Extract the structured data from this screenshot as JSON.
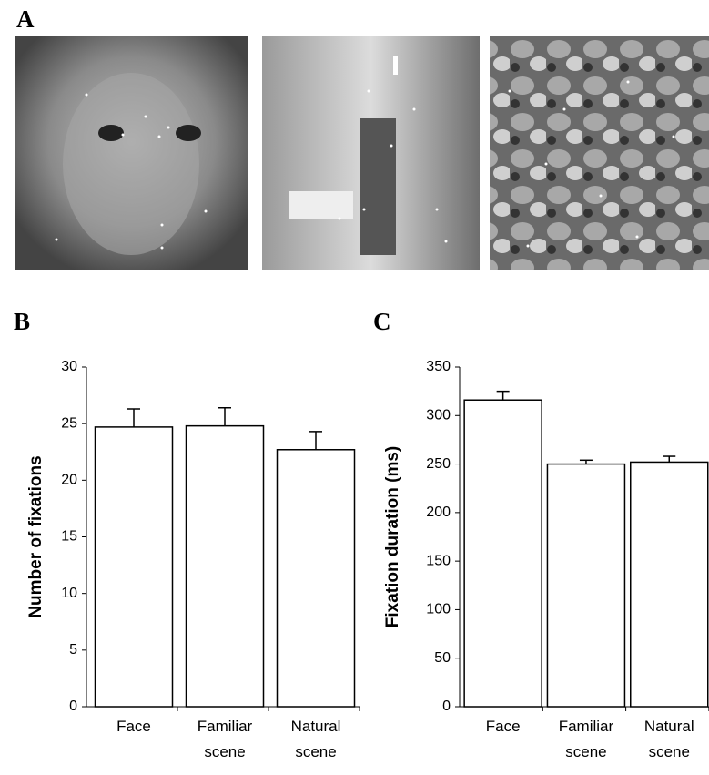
{
  "panel_labels": [
    "A",
    "B",
    "C"
  ],
  "chart_data": [
    {
      "type": "bar",
      "ylabel": "Number of fixations",
      "categories": [
        "Face",
        "Familiar scene",
        "Natural scene"
      ],
      "values": [
        24.7,
        24.8,
        22.7
      ],
      "errors": [
        1.6,
        1.6,
        1.6
      ],
      "color": "#ffffff",
      "ylim": [
        0,
        30
      ],
      "yticks": [
        0,
        5,
        10,
        15,
        20,
        25,
        30
      ]
    },
    {
      "type": "bar",
      "ylabel": "Fixation duration (ms)",
      "categories": [
        "Face",
        "Familiar scene",
        "Natural scene"
      ],
      "values": [
        316,
        250,
        252
      ],
      "errors": [
        9,
        4,
        6
      ],
      "color": "#ffffff",
      "ylim": [
        0,
        350
      ],
      "yticks": [
        0,
        50,
        100,
        150,
        200,
        250,
        300,
        350
      ]
    }
  ]
}
